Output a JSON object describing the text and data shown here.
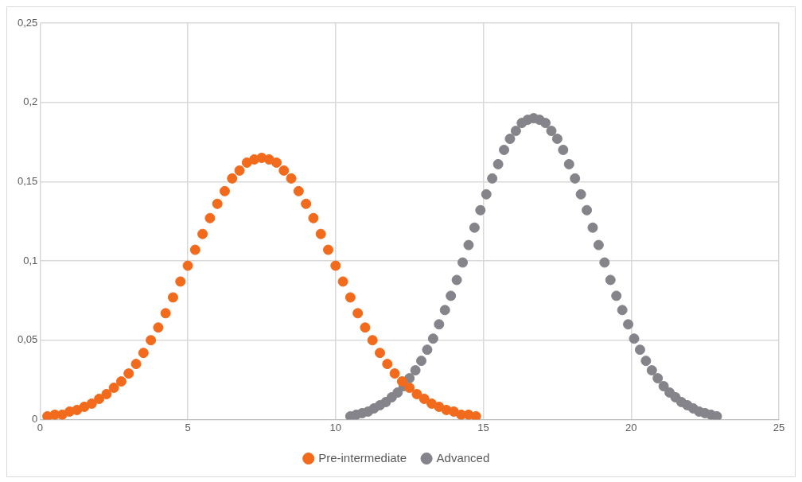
{
  "chart_data": {
    "type": "scatter",
    "marker": "circle",
    "grid": true,
    "legend": "bottom",
    "xlim": [
      0,
      25
    ],
    "xticks": [
      0,
      5,
      10,
      15,
      20,
      25
    ],
    "ylim": [
      0,
      0.25
    ],
    "yticks": [
      0,
      {
        "value": 0.05,
        "label": "0,05"
      },
      {
        "value": 0.1,
        "label": "0,1"
      },
      {
        "value": 0.15,
        "label": "0,15"
      },
      {
        "value": 0.2,
        "label": "0,2"
      },
      {
        "value": 0.25,
        "label": "0,25"
      }
    ],
    "series": [
      {
        "name": "Pre-intermediate",
        "color": "#f26b1d",
        "x": [
          0.25,
          0.5,
          0.75,
          1,
          1.25,
          1.5,
          1.75,
          2,
          2.25,
          2.5,
          2.75,
          3,
          3.25,
          3.5,
          3.75,
          4,
          4.25,
          4.5,
          4.75,
          5,
          5.25,
          5.5,
          5.75,
          6,
          6.25,
          6.5,
          6.75,
          7,
          7.25,
          7.5,
          7.75,
          8,
          8.25,
          8.5,
          8.75,
          9,
          9.25,
          9.5,
          9.75,
          10,
          10.25,
          10.5,
          10.75,
          11,
          11.25,
          11.5,
          11.75,
          12,
          12.25,
          12.5,
          12.75,
          13,
          13.25,
          13.5,
          13.75,
          14,
          14.25,
          14.5,
          14.75
        ],
        "values": [
          0.002,
          0.003,
          0.003,
          0.005,
          0.006,
          0.008,
          0.01,
          0.013,
          0.016,
          0.02,
          0.024,
          0.029,
          0.035,
          0.042,
          0.05,
          0.058,
          0.067,
          0.077,
          0.087,
          0.097,
          0.107,
          0.117,
          0.127,
          0.136,
          0.144,
          0.152,
          0.157,
          0.162,
          0.164,
          0.165,
          0.164,
          0.162,
          0.157,
          0.152,
          0.144,
          0.136,
          0.127,
          0.117,
          0.107,
          0.097,
          0.087,
          0.077,
          0.067,
          0.058,
          0.05,
          0.042,
          0.035,
          0.029,
          0.024,
          0.02,
          0.016,
          0.013,
          0.01,
          0.008,
          0.006,
          0.005,
          0.003,
          0.003,
          0.002
        ]
      },
      {
        "name": "Advanced",
        "color": "#85848b",
        "x": [
          10.5,
          10.7,
          10.9,
          11.1,
          11.3,
          11.5,
          11.7,
          11.9,
          12.1,
          12.3,
          12.5,
          12.7,
          12.9,
          13.1,
          13.3,
          13.5,
          13.7,
          13.9,
          14.1,
          14.3,
          14.5,
          14.7,
          14.9,
          15.1,
          15.3,
          15.5,
          15.7,
          15.9,
          16.1,
          16.3,
          16.5,
          16.7,
          16.9,
          17.1,
          17.3,
          17.5,
          17.7,
          17.9,
          18.1,
          18.3,
          18.5,
          18.7,
          18.9,
          19.1,
          19.3,
          19.5,
          19.7,
          19.9,
          20.1,
          20.3,
          20.5,
          20.7,
          20.9,
          21.1,
          21.3,
          21.5,
          21.7,
          21.9,
          22.1,
          22.3,
          22.5,
          22.7,
          22.9
        ],
        "values": [
          0.002,
          0.003,
          0.004,
          0.005,
          0.007,
          0.009,
          0.011,
          0.014,
          0.017,
          0.021,
          0.026,
          0.031,
          0.037,
          0.044,
          0.051,
          0.06,
          0.069,
          0.078,
          0.088,
          0.099,
          0.11,
          0.121,
          0.132,
          0.142,
          0.152,
          0.161,
          0.17,
          0.177,
          0.182,
          0.187,
          0.189,
          0.19,
          0.189,
          0.187,
          0.182,
          0.177,
          0.17,
          0.161,
          0.152,
          0.142,
          0.132,
          0.121,
          0.11,
          0.099,
          0.088,
          0.078,
          0.069,
          0.06,
          0.051,
          0.044,
          0.037,
          0.031,
          0.026,
          0.021,
          0.017,
          0.014,
          0.011,
          0.009,
          0.007,
          0.005,
          0.004,
          0.003,
          0.002
        ]
      }
    ]
  }
}
